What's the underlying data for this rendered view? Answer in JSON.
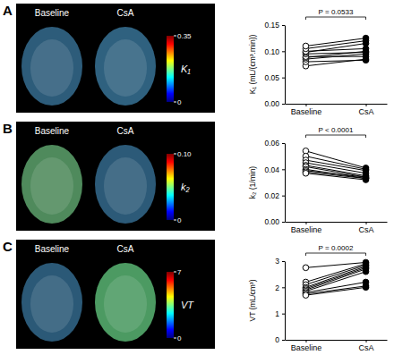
{
  "chart_data": [
    {
      "type": "line",
      "panel": "A",
      "categories": [
        "Baseline",
        "CsA"
      ],
      "y_label": "K₁ (mL/(cm³.min))",
      "annotation": "P = 0.0533",
      "ylim": [
        0,
        0.15
      ],
      "yticks": [
        {
          "value": 0,
          "label": "0.00"
        },
        0.05,
        {
          "value": 0.1,
          "label": "0.10"
        },
        0.15
      ],
      "color": "#000000",
      "marker": "circle",
      "grid": false,
      "colorbar": {
        "label": "K₁",
        "range": [
          0,
          0.35
        ],
        "ticks": [
          0,
          0.35
        ]
      },
      "series": [
        {
          "values": [
            0.072,
            0.085
          ]
        },
        {
          "values": [
            0.08,
            0.083
          ]
        },
        {
          "values": [
            0.085,
            0.095
          ]
        },
        {
          "values": [
            0.088,
            0.1
          ]
        },
        {
          "values": [
            0.09,
            0.09
          ]
        },
        {
          "values": [
            0.095,
            0.098
          ]
        },
        {
          "values": [
            0.098,
            0.115
          ]
        },
        {
          "values": [
            0.1,
            0.105
          ]
        },
        {
          "values": [
            0.105,
            0.12
          ]
        },
        {
          "values": [
            0.11,
            0.125
          ]
        }
      ]
    },
    {
      "type": "line",
      "panel": "B",
      "categories": [
        "Baseline",
        "CsA"
      ],
      "y_label": "k₂ (1/min)",
      "annotation": "P < 0.0001",
      "ylim": [
        0,
        0.06
      ],
      "yticks": [
        {
          "value": 0,
          "label": "0.00"
        },
        0.02,
        0.04,
        0.06
      ],
      "color": "#000000",
      "marker": "circle",
      "grid": false,
      "colorbar": {
        "label": "k₂",
        "range": [
          0,
          0.1
        ],
        "ticks": [
          0,
          {
            "value": 0.1,
            "label": "0.10"
          }
        ]
      },
      "series": [
        {
          "values": [
            0.054,
            0.041
          ]
        },
        {
          "values": [
            0.05,
            0.04
          ]
        },
        {
          "values": [
            0.047,
            0.039
          ]
        },
        {
          "values": [
            0.045,
            0.037
          ]
        },
        {
          "values": [
            0.043,
            0.035
          ]
        },
        {
          "values": [
            0.042,
            0.034
          ]
        },
        {
          "values": [
            0.04,
            0.033
          ]
        },
        {
          "values": [
            0.039,
            0.034
          ]
        },
        {
          "values": [
            0.038,
            0.033
          ]
        },
        {
          "values": [
            0.037,
            0.032
          ]
        }
      ]
    },
    {
      "type": "line",
      "panel": "C",
      "categories": [
        "Baseline",
        "CsA"
      ],
      "y_label": "VT (mL/cm³)",
      "annotation": "P = 0.0002",
      "ylim": [
        0,
        3
      ],
      "yticks": [
        0,
        1,
        2,
        3
      ],
      "color": "#000000",
      "marker": "circle",
      "grid": false,
      "colorbar": {
        "label": "VT",
        "range": [
          0,
          7
        ],
        "ticks": [
          0,
          7
        ]
      },
      "series": [
        {
          "values": [
            2.75,
            2.95
          ]
        },
        {
          "values": [
            2.2,
            2.9
          ]
        },
        {
          "values": [
            2.1,
            2.85
          ]
        },
        {
          "values": [
            2.0,
            2.8
          ]
        },
        {
          "values": [
            1.95,
            2.75
          ]
        },
        {
          "values": [
            1.9,
            2.7
          ]
        },
        {
          "values": [
            1.85,
            2.6
          ]
        },
        {
          "values": [
            1.8,
            2.2
          ]
        },
        {
          "values": [
            1.75,
            2.05
          ]
        },
        {
          "values": [
            1.7,
            2.0
          ]
        }
      ]
    }
  ]
}
